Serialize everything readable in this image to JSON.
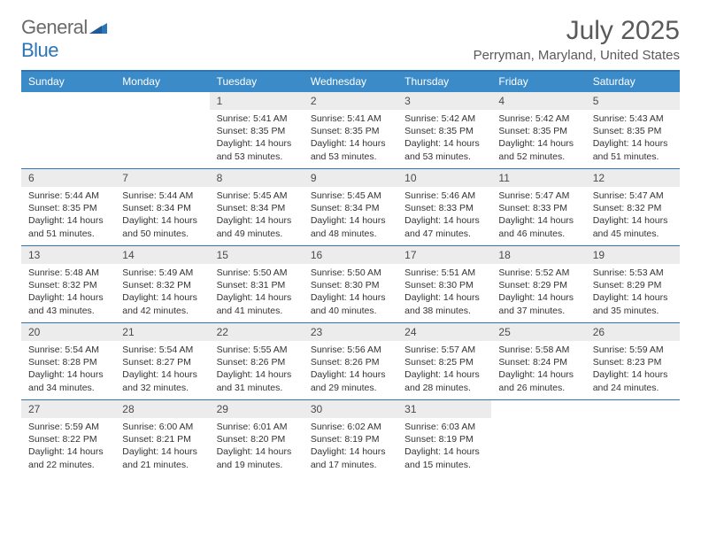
{
  "logo": {
    "general": "General",
    "blue": "Blue"
  },
  "title": "July 2025",
  "location": "Perryman, Maryland, United States",
  "colors": {
    "banner": "#3b8bc9",
    "rule": "#2e75b6",
    "daynum_bg": "#ececec",
    "text": "#333333",
    "title_text": "#5a5a5a"
  },
  "dow": [
    "Sunday",
    "Monday",
    "Tuesday",
    "Wednesday",
    "Thursday",
    "Friday",
    "Saturday"
  ],
  "weeks": [
    [
      null,
      null,
      {
        "n": "1",
        "sr": "5:41 AM",
        "ss": "8:35 PM",
        "dl": "14 hours and 53 minutes."
      },
      {
        "n": "2",
        "sr": "5:41 AM",
        "ss": "8:35 PM",
        "dl": "14 hours and 53 minutes."
      },
      {
        "n": "3",
        "sr": "5:42 AM",
        "ss": "8:35 PM",
        "dl": "14 hours and 53 minutes."
      },
      {
        "n": "4",
        "sr": "5:42 AM",
        "ss": "8:35 PM",
        "dl": "14 hours and 52 minutes."
      },
      {
        "n": "5",
        "sr": "5:43 AM",
        "ss": "8:35 PM",
        "dl": "14 hours and 51 minutes."
      }
    ],
    [
      {
        "n": "6",
        "sr": "5:44 AM",
        "ss": "8:35 PM",
        "dl": "14 hours and 51 minutes."
      },
      {
        "n": "7",
        "sr": "5:44 AM",
        "ss": "8:34 PM",
        "dl": "14 hours and 50 minutes."
      },
      {
        "n": "8",
        "sr": "5:45 AM",
        "ss": "8:34 PM",
        "dl": "14 hours and 49 minutes."
      },
      {
        "n": "9",
        "sr": "5:45 AM",
        "ss": "8:34 PM",
        "dl": "14 hours and 48 minutes."
      },
      {
        "n": "10",
        "sr": "5:46 AM",
        "ss": "8:33 PM",
        "dl": "14 hours and 47 minutes."
      },
      {
        "n": "11",
        "sr": "5:47 AM",
        "ss": "8:33 PM",
        "dl": "14 hours and 46 minutes."
      },
      {
        "n": "12",
        "sr": "5:47 AM",
        "ss": "8:32 PM",
        "dl": "14 hours and 45 minutes."
      }
    ],
    [
      {
        "n": "13",
        "sr": "5:48 AM",
        "ss": "8:32 PM",
        "dl": "14 hours and 43 minutes."
      },
      {
        "n": "14",
        "sr": "5:49 AM",
        "ss": "8:32 PM",
        "dl": "14 hours and 42 minutes."
      },
      {
        "n": "15",
        "sr": "5:50 AM",
        "ss": "8:31 PM",
        "dl": "14 hours and 41 minutes."
      },
      {
        "n": "16",
        "sr": "5:50 AM",
        "ss": "8:30 PM",
        "dl": "14 hours and 40 minutes."
      },
      {
        "n": "17",
        "sr": "5:51 AM",
        "ss": "8:30 PM",
        "dl": "14 hours and 38 minutes."
      },
      {
        "n": "18",
        "sr": "5:52 AM",
        "ss": "8:29 PM",
        "dl": "14 hours and 37 minutes."
      },
      {
        "n": "19",
        "sr": "5:53 AM",
        "ss": "8:29 PM",
        "dl": "14 hours and 35 minutes."
      }
    ],
    [
      {
        "n": "20",
        "sr": "5:54 AM",
        "ss": "8:28 PM",
        "dl": "14 hours and 34 minutes."
      },
      {
        "n": "21",
        "sr": "5:54 AM",
        "ss": "8:27 PM",
        "dl": "14 hours and 32 minutes."
      },
      {
        "n": "22",
        "sr": "5:55 AM",
        "ss": "8:26 PM",
        "dl": "14 hours and 31 minutes."
      },
      {
        "n": "23",
        "sr": "5:56 AM",
        "ss": "8:26 PM",
        "dl": "14 hours and 29 minutes."
      },
      {
        "n": "24",
        "sr": "5:57 AM",
        "ss": "8:25 PM",
        "dl": "14 hours and 28 minutes."
      },
      {
        "n": "25",
        "sr": "5:58 AM",
        "ss": "8:24 PM",
        "dl": "14 hours and 26 minutes."
      },
      {
        "n": "26",
        "sr": "5:59 AM",
        "ss": "8:23 PM",
        "dl": "14 hours and 24 minutes."
      }
    ],
    [
      {
        "n": "27",
        "sr": "5:59 AM",
        "ss": "8:22 PM",
        "dl": "14 hours and 22 minutes."
      },
      {
        "n": "28",
        "sr": "6:00 AM",
        "ss": "8:21 PM",
        "dl": "14 hours and 21 minutes."
      },
      {
        "n": "29",
        "sr": "6:01 AM",
        "ss": "8:20 PM",
        "dl": "14 hours and 19 minutes."
      },
      {
        "n": "30",
        "sr": "6:02 AM",
        "ss": "8:19 PM",
        "dl": "14 hours and 17 minutes."
      },
      {
        "n": "31",
        "sr": "6:03 AM",
        "ss": "8:19 PM",
        "dl": "14 hours and 15 minutes."
      },
      null,
      null
    ]
  ],
  "labels": {
    "sunrise": "Sunrise:",
    "sunset": "Sunset:",
    "daylight": "Daylight:"
  }
}
